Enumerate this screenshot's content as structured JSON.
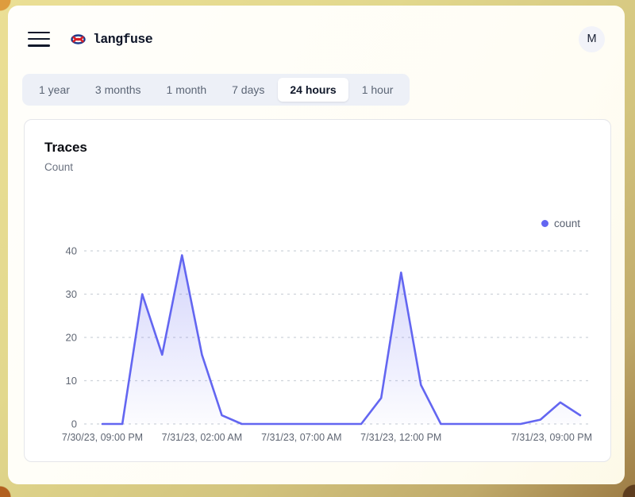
{
  "brand": {
    "name": "langfuse"
  },
  "header": {
    "avatar_initial": "M"
  },
  "time_range_tabs": [
    {
      "label": "1 year",
      "selected": false
    },
    {
      "label": "3 months",
      "selected": false
    },
    {
      "label": "1 month",
      "selected": false
    },
    {
      "label": "7 days",
      "selected": false
    },
    {
      "label": "24 hours",
      "selected": true
    },
    {
      "label": "1 hour",
      "selected": false
    }
  ],
  "card": {
    "title": "Traces",
    "subtitle": "Count"
  },
  "chart_data": {
    "type": "area",
    "title": "Traces",
    "ylabel": "Count",
    "legend": [
      {
        "label": "count",
        "color": "#6366f1"
      }
    ],
    "grid": "horizontal-dashed",
    "legend_position": "top-right",
    "ylim": [
      0,
      40
    ],
    "y_ticks": [
      0,
      10,
      20,
      30,
      40
    ],
    "x_tick_labels": [
      "7/30/23, 09:00 PM",
      "7/31/23, 02:00 AM",
      "7/31/23, 07:00 AM",
      "7/31/23, 12:00 PM",
      "7/31/23, 09:00 PM"
    ],
    "x_tick_indices": [
      0,
      5,
      10,
      15,
      24
    ],
    "x_unit": "1 hour per point",
    "series": [
      {
        "name": "count",
        "color": "#6366f1",
        "values": [
          0,
          0,
          30,
          16,
          39,
          16,
          2,
          0,
          0,
          0,
          0,
          0,
          0,
          0,
          6,
          35,
          9,
          0,
          0,
          0,
          0,
          0,
          1,
          5,
          2
        ]
      }
    ]
  },
  "colors": {
    "accent": "#6366f1",
    "axis_text": "#5f6673",
    "gridline": "#ced3da",
    "tabbar_bg": "#edf0f7",
    "frame_gold": "#d3c47e"
  }
}
